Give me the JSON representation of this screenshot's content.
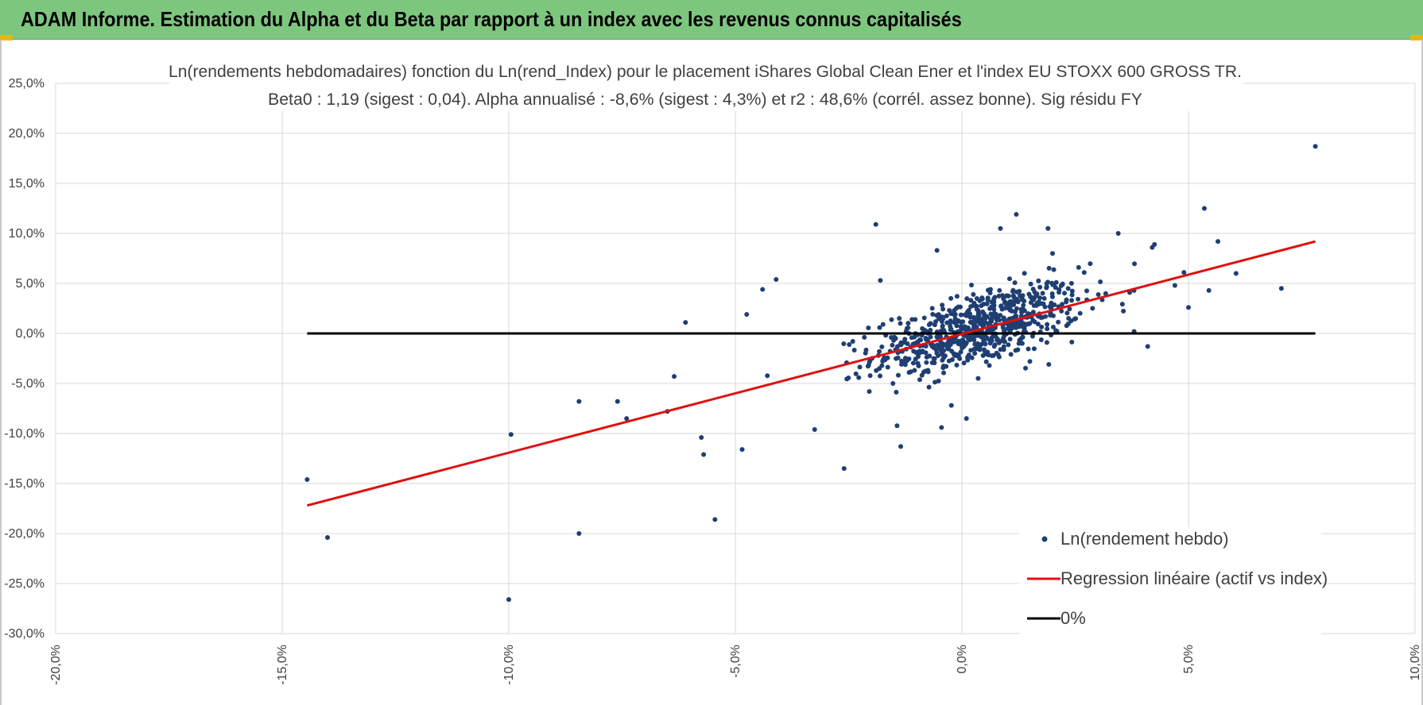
{
  "header": {
    "title": "ADAM Informe. Estimation du Alpha et du Beta par rapport à un index avec les revenus connus capitalisés"
  },
  "colors": {
    "header_bg": "#7dc67e",
    "points": "#1f3f73",
    "regression": "#e01010",
    "zero_line": "#000000",
    "grid": "#d9d9d9",
    "corner_accent": "#f0b400"
  },
  "chart_data": {
    "type": "scatter",
    "title_line1": "Ln(rendements hebdomadaires) fonction du Ln(rend_Index) pour le placement iShares Global Clean Ener et l'index EU STOXX 600 GROSS TR.",
    "title_line2": "Beta0 : 1,19 (sigest : 0,04).  Alpha annualisé : -8,6% (sigest : 4,3%) et r2 : 48,6% (corrél. assez bonne). Sig résidu FY",
    "xlim": [
      -0.2,
      0.1
    ],
    "ylim": [
      -0.3,
      0.25
    ],
    "x_ticks": [
      "-20,0%",
      "-15,0%",
      "-10,0%",
      "-5,0%",
      "0,0%",
      "5,0%",
      "10,0%"
    ],
    "y_ticks": [
      "25,0%",
      "20,0%",
      "15,0%",
      "10,0%",
      "5,0%",
      "0,0%",
      "-5,0%",
      "-10,0%",
      "-15,0%",
      "-20,0%",
      "-25,0%",
      "-30,0%"
    ],
    "grid": "horizontal major lines",
    "legend_position": "bottom-right",
    "series": [
      {
        "name": "Ln(rendement hebdo)",
        "kind": "scatter",
        "color": "#1f3f73",
        "outliers": [
          [
            -0.1445,
            -0.146
          ],
          [
            -0.14,
            -0.204
          ],
          [
            -0.1,
            -0.266
          ],
          [
            -0.0995,
            -0.101
          ],
          [
            -0.0845,
            -0.2
          ],
          [
            -0.0845,
            -0.068
          ],
          [
            -0.076,
            -0.068
          ],
          [
            -0.074,
            -0.085
          ],
          [
            -0.065,
            -0.078
          ],
          [
            -0.0635,
            -0.043
          ],
          [
            -0.061,
            0.011
          ],
          [
            -0.0575,
            -0.104
          ],
          [
            -0.057,
            -0.121
          ],
          [
            -0.0545,
            -0.186
          ],
          [
            -0.0485,
            -0.116
          ],
          [
            -0.0475,
            0.019
          ],
          [
            -0.044,
            0.044
          ],
          [
            -0.041,
            0.054
          ],
          [
            -0.0325,
            -0.096
          ],
          [
            -0.026,
            -0.135
          ],
          [
            -0.019,
            0.109
          ],
          [
            -0.018,
            0.053
          ],
          [
            -0.0135,
            -0.113
          ],
          [
            -0.0055,
            0.083
          ],
          [
            -0.0045,
            -0.094
          ],
          [
            0.001,
            -0.085
          ],
          [
            0.0085,
            0.105
          ],
          [
            0.012,
            0.119
          ],
          [
            0.015,
            -0.028
          ],
          [
            0.019,
            0.105
          ],
          [
            0.02,
            0.08
          ],
          [
            0.0345,
            0.1
          ],
          [
            0.042,
            0.086
          ],
          [
            0.0425,
            0.089
          ],
          [
            0.049,
            0.061
          ],
          [
            0.05,
            0.026
          ],
          [
            0.0535,
            0.125
          ],
          [
            0.0545,
            0.043
          ],
          [
            0.0565,
            0.092
          ],
          [
            0.0605,
            0.06
          ],
          [
            0.0705,
            0.045
          ],
          [
            0.078,
            0.187
          ],
          [
            0.038,
            0.002
          ],
          [
            0.041,
            -0.013
          ],
          [
            0.047,
            0.048
          ]
        ],
        "cloud": {
          "count": 720,
          "model": "y = 0.0003 + 1.19*x + noise",
          "x_mean": 0.0035,
          "x_sd": 0.0115,
          "residual_sd": 0.018,
          "seed": 12345
        }
      },
      {
        "name": "Regression linéaire (actif vs index)",
        "kind": "line",
        "color": "#e01010",
        "points": [
          [
            -0.1445,
            -0.172
          ],
          [
            0.078,
            0.092
          ]
        ]
      },
      {
        "name": "0%",
        "kind": "line",
        "color": "#000000",
        "points": [
          [
            -0.1445,
            0.0
          ],
          [
            0.078,
            0.0
          ]
        ]
      }
    ]
  }
}
